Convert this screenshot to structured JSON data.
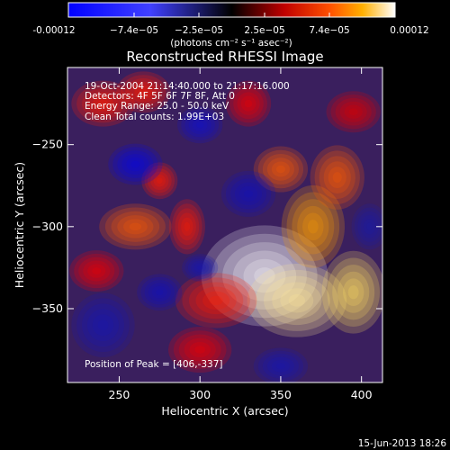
{
  "colorbar": {
    "ticks": [
      "-0.00012",
      "−7.4e−05",
      "−2.5e−05",
      "2.5e−05",
      "7.4e−05",
      "0.00012"
    ],
    "unit_label": "(photons cm⁻² s⁻¹ asec⁻²)"
  },
  "chart_data": {
    "type": "heatmap",
    "title": "Reconstructed RHESSI Image",
    "xlabel": "Heliocentric X (arcsec)",
    "ylabel": "Heliocentric Y (arcsec)",
    "xlim": [
      218,
      413
    ],
    "ylim": [
      -395,
      -203
    ],
    "xticks": [
      250,
      300,
      350,
      400
    ],
    "yticks": [
      -250,
      -300,
      -350
    ],
    "color_range": [
      -0.00012,
      0.00012
    ],
    "annotations": [
      "19-Oct-2004 21:14:40.000 to 21:17:16.000",
      "Detectors: 4F 5F 6F 7F 8F, Att 0",
      "Energy Range: 25.0 - 50.0 keV",
      "Clean     Total counts: 1.99E+03"
    ],
    "peak_label": "Position of Peak = [406,-337]",
    "peak": [
      406,
      -337
    ],
    "blobs": [
      {
        "x": 340,
        "y": -330,
        "sx": 28,
        "sy": 22,
        "v": 0.00012
      },
      {
        "x": 360,
        "y": -345,
        "sx": 22,
        "sy": 16,
        "v": 0.00011
      },
      {
        "x": 395,
        "y": -340,
        "sx": 14,
        "sy": 18,
        "v": 0.000105
      },
      {
        "x": 370,
        "y": -300,
        "sx": 14,
        "sy": 18,
        "v": 9e-05
      },
      {
        "x": 385,
        "y": -270,
        "sx": 12,
        "sy": 14,
        "v": 8e-05
      },
      {
        "x": 350,
        "y": -265,
        "sx": 12,
        "sy": 10,
        "v": 8e-05
      },
      {
        "x": 310,
        "y": -345,
        "sx": 18,
        "sy": 12,
        "v": 7e-05
      },
      {
        "x": 300,
        "y": -375,
        "sx": 14,
        "sy": 10,
        "v": 6e-05
      },
      {
        "x": 260,
        "y": -300,
        "sx": 16,
        "sy": 10,
        "v": 8e-05
      },
      {
        "x": 292,
        "y": -300,
        "sx": 8,
        "sy": 12,
        "v": 7e-05
      },
      {
        "x": 275,
        "y": -272,
        "sx": 8,
        "sy": 8,
        "v": 7e-05
      },
      {
        "x": 236,
        "y": -327,
        "sx": 12,
        "sy": 9,
        "v": 6e-05
      },
      {
        "x": 240,
        "y": -225,
        "sx": 14,
        "sy": 10,
        "v": 7e-05
      },
      {
        "x": 265,
        "y": -218,
        "sx": 12,
        "sy": 9,
        "v": 7e-05
      },
      {
        "x": 330,
        "y": -225,
        "sx": 10,
        "sy": 10,
        "v": 6e-05
      },
      {
        "x": 395,
        "y": -230,
        "sx": 12,
        "sy": 9,
        "v": 5e-05
      },
      {
        "x": 260,
        "y": -262,
        "sx": 12,
        "sy": 9,
        "v": -9e-05
      },
      {
        "x": 300,
        "y": -238,
        "sx": 10,
        "sy": 8,
        "v": -7e-05
      },
      {
        "x": 330,
        "y": -280,
        "sx": 12,
        "sy": 10,
        "v": -6e-05
      },
      {
        "x": 240,
        "y": -360,
        "sx": 14,
        "sy": 14,
        "v": -5e-05
      },
      {
        "x": 275,
        "y": -340,
        "sx": 10,
        "sy": 8,
        "v": -6e-05
      },
      {
        "x": 300,
        "y": -325,
        "sx": 8,
        "sy": 6,
        "v": -5e-05
      },
      {
        "x": 350,
        "y": -385,
        "sx": 12,
        "sy": 8,
        "v": -5e-05
      },
      {
        "x": 405,
        "y": -300,
        "sx": 8,
        "sy": 10,
        "v": -4e-05
      }
    ]
  },
  "footer_date": "15-Jun-2013 18:26"
}
